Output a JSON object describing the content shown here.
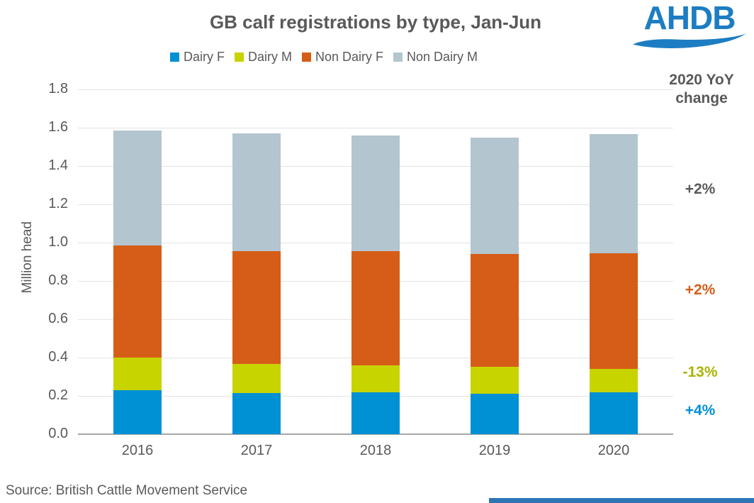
{
  "chart_data": {
    "type": "bar",
    "stacked": true,
    "title": "GB calf registrations by type, Jan-Jun",
    "ylabel": "Million head",
    "ylim": [
      0,
      1.8
    ],
    "grid": true,
    "legend_position": "top",
    "categories": [
      "2016",
      "2017",
      "2018",
      "2019",
      "2020"
    ],
    "yticks": [
      "1.8",
      "1.6",
      "1.4",
      "1.2",
      "1.0",
      "0.8",
      "0.6",
      "0.4",
      "0.2",
      "0.0"
    ],
    "series": [
      {
        "name": "Dairy F",
        "color": "#0090d4",
        "values": [
          0.23,
          0.215,
          0.218,
          0.212,
          0.22
        ]
      },
      {
        "name": "Dairy M",
        "color": "#c8d400",
        "values": [
          0.17,
          0.15,
          0.142,
          0.14,
          0.122
        ]
      },
      {
        "name": "Non Dairy F",
        "color": "#d65d17",
        "values": [
          0.585,
          0.592,
          0.595,
          0.59,
          0.602
        ]
      },
      {
        "name": "Non Dairy M",
        "color": "#b3c5cf",
        "values": [
          0.6,
          0.615,
          0.605,
          0.608,
          0.621
        ]
      }
    ]
  },
  "annotations": {
    "header": "2020 YoY\nchange",
    "items": [
      {
        "label": "+2%",
        "color": "#595959",
        "y_value": 1.274
      },
      {
        "label": "+2%",
        "color": "#d65d17",
        "y_value": 0.748
      },
      {
        "label": "-13%",
        "color": "#a9b400",
        "y_value": 0.317
      },
      {
        "label": "+4%",
        "color": "#0090d4",
        "y_value": 0.117
      }
    ]
  },
  "logo": {
    "text": "AHDB",
    "color": "#1d7dc2"
  },
  "source": {
    "text": "Source: British Cattle Movement Service"
  },
  "footer": {
    "accent_color": "#2e75b6"
  }
}
